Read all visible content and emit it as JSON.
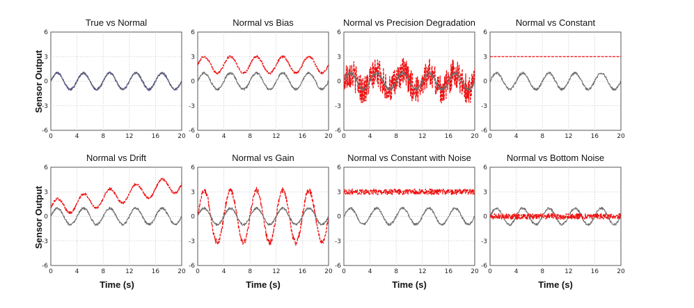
{
  "figure": {
    "ylabel": "Sensor Output",
    "xlabel": "Time  (s)"
  },
  "colors": {
    "normal_gray": "#6e6e6e",
    "true_blue": "#2b2f9e",
    "fault_red": "#ee1111",
    "grid": "#c8c8c8"
  },
  "axes": {
    "xticks": [
      "0",
      "4",
      "8",
      "12",
      "16",
      "20"
    ],
    "yticks": [
      "6",
      "3",
      "0",
      "-3",
      "-6"
    ]
  },
  "chart_data": [
    {
      "type": "line",
      "title": "True vs Normal",
      "xlim": [
        0,
        20
      ],
      "ylim": [
        -6,
        6
      ],
      "grid": true,
      "series": [
        {
          "style": "solid",
          "color": "#2b2f9e",
          "model": "sine",
          "x": [
            0,
            20
          ],
          "amplitude": 1.0,
          "period": 4.0,
          "offset": 0,
          "noise": 0.15
        },
        {
          "style": "solid",
          "color": "#6e6e6e",
          "model": "sine",
          "x": [
            0,
            20
          ],
          "amplitude": 1.0,
          "period": 4.0,
          "offset": 0,
          "noise": 0.1
        }
      ]
    },
    {
      "type": "line",
      "title": "Normal vs Bias",
      "xlim": [
        0,
        20
      ],
      "ylim": [
        -6,
        6
      ],
      "grid": true,
      "series": [
        {
          "style": "dashed",
          "color": "#ee1111",
          "model": "sine",
          "x": [
            0,
            20
          ],
          "amplitude": 1.0,
          "period": 4.0,
          "offset": 2.0,
          "noise": 0.15
        },
        {
          "style": "solid",
          "color": "#6e6e6e",
          "model": "sine",
          "x": [
            0,
            20
          ],
          "amplitude": 1.0,
          "period": 4.0,
          "offset": 0,
          "noise": 0.15
        }
      ]
    },
    {
      "type": "line",
      "title": "Normal vs Precision Degradation",
      "xlim": [
        0,
        20
      ],
      "ylim": [
        -6,
        6
      ],
      "grid": true,
      "series": [
        {
          "style": "dashed",
          "color": "#ee1111",
          "model": "sine",
          "x": [
            0,
            20
          ],
          "amplitude": 1.0,
          "period": 4.0,
          "offset": 0,
          "noise": 1.8
        },
        {
          "style": "solid",
          "color": "#6e6e6e",
          "model": "sine",
          "x": [
            0,
            20
          ],
          "amplitude": 1.0,
          "period": 4.0,
          "offset": 0,
          "noise": 0.2
        }
      ]
    },
    {
      "type": "line",
      "title": "Normal vs Constant",
      "xlim": [
        0,
        20
      ],
      "ylim": [
        -6,
        6
      ],
      "grid": true,
      "series": [
        {
          "style": "dashed",
          "color": "#ee1111",
          "model": "constant",
          "x": [
            0,
            20
          ],
          "value": 3.0,
          "noise": 0
        },
        {
          "style": "solid",
          "color": "#6e6e6e",
          "model": "sine",
          "x": [
            0,
            20
          ],
          "amplitude": 1.0,
          "period": 4.0,
          "offset": 0,
          "noise": 0.15
        }
      ]
    },
    {
      "type": "line",
      "title": "Normal vs Drift",
      "xlim": [
        0,
        20
      ],
      "ylim": [
        -6,
        6
      ],
      "grid": true,
      "series": [
        {
          "style": "dashed",
          "color": "#ee1111",
          "model": "sine_drift",
          "x": [
            0,
            20
          ],
          "amplitude": 1.0,
          "period": 4.0,
          "offset": 1.0,
          "drift_end": 4.0,
          "noise": 0.15
        },
        {
          "style": "solid",
          "color": "#6e6e6e",
          "model": "sine",
          "x": [
            0,
            20
          ],
          "amplitude": 1.0,
          "period": 4.0,
          "offset": 0,
          "noise": 0.15
        }
      ]
    },
    {
      "type": "line",
      "title": "Normal vs Gain",
      "xlim": [
        0,
        20
      ],
      "ylim": [
        -6,
        6
      ],
      "grid": true,
      "series": [
        {
          "style": "dashed",
          "color": "#ee1111",
          "model": "sine",
          "x": [
            0,
            20
          ],
          "amplitude": 3.2,
          "period": 4.0,
          "offset": 0,
          "noise": 0.35
        },
        {
          "style": "solid",
          "color": "#6e6e6e",
          "model": "sine",
          "x": [
            0,
            20
          ],
          "amplitude": 1.0,
          "period": 4.0,
          "offset": 0,
          "noise": 0.15
        }
      ]
    },
    {
      "type": "line",
      "title": "Normal vs Constant with Noise",
      "xlim": [
        0,
        20
      ],
      "ylim": [
        -6,
        6
      ],
      "grid": true,
      "series": [
        {
          "style": "dashed",
          "color": "#ee1111",
          "model": "constant",
          "x": [
            0,
            20
          ],
          "value": 3.0,
          "noise": 0.35
        },
        {
          "style": "solid",
          "color": "#6e6e6e",
          "model": "sine",
          "x": [
            0,
            20
          ],
          "amplitude": 1.0,
          "period": 4.0,
          "offset": 0,
          "noise": 0.15
        }
      ]
    },
    {
      "type": "line",
      "title": "Normal vs Bottom Noise",
      "xlim": [
        0,
        20
      ],
      "ylim": [
        -6,
        6
      ],
      "grid": true,
      "series": [
        {
          "style": "solid",
          "color": "#6e6e6e",
          "model": "sine",
          "x": [
            0,
            20
          ],
          "amplitude": 1.0,
          "period": 4.0,
          "offset": 0,
          "noise": 0.15
        },
        {
          "style": "dashed",
          "color": "#ee1111",
          "model": "constant",
          "x": [
            0,
            20
          ],
          "value": 0.0,
          "noise": 0.35
        }
      ]
    }
  ]
}
